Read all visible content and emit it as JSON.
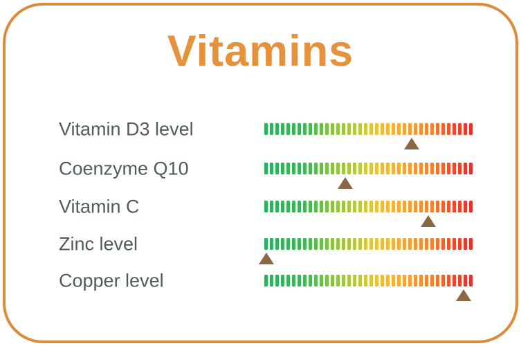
{
  "title": "Vitamins",
  "theme": {
    "border_color": "#DE8A3B",
    "title_color": "#E5923C",
    "label_color": "#4E5F52",
    "marker_color": "#8B6744",
    "gradient_stops": [
      [
        0.0,
        "#2BB261"
      ],
      [
        0.2,
        "#3FB753"
      ],
      [
        0.33,
        "#8CC63F"
      ],
      [
        0.45,
        "#BBC93D"
      ],
      [
        0.53,
        "#E8C438"
      ],
      [
        0.62,
        "#F6B237"
      ],
      [
        0.72,
        "#F59B33"
      ],
      [
        0.82,
        "#F07F30"
      ],
      [
        0.9,
        "#EA4F2C"
      ],
      [
        1.0,
        "#E7312A"
      ]
    ]
  },
  "chart_data": {
    "type": "bar",
    "subtype": "gradient-scale-with-markers",
    "title": "Vitamins",
    "categories": [
      "Vitamin D3 level",
      "Coenzyme Q10",
      "Vitamin C",
      "Zinc level",
      "Copper level"
    ],
    "marker_positions_pct": [
      71,
      39,
      79,
      1,
      96
    ],
    "scale_range_pct": [
      0,
      100
    ],
    "ticks_per_bar": 38,
    "legend": "none",
    "grid": false,
    "rows": [
      {
        "label": "Vitamin D3 level",
        "marker_pct": 71
      },
      {
        "label": "Coenzyme Q10",
        "marker_pct": 39
      },
      {
        "label": "Vitamin C",
        "marker_pct": 79
      },
      {
        "label": "Zinc level",
        "marker_pct": 1
      },
      {
        "label": "Copper level",
        "marker_pct": 96
      }
    ]
  }
}
